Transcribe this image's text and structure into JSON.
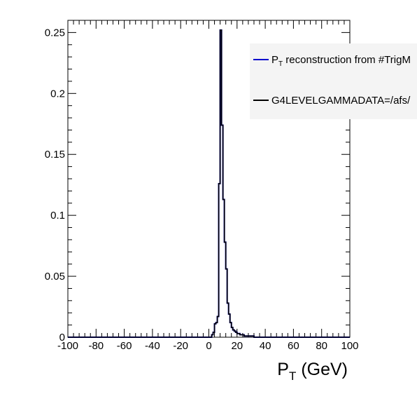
{
  "chart_data": {
    "type": "line",
    "title": "",
    "xlabel": "P_T (GeV)",
    "xlabel_main": "P",
    "xlabel_sub": "T",
    "xlabel_rest": " (GeV)",
    "ylabel": "",
    "xlim": [
      -100,
      100
    ],
    "ylim": [
      0,
      0.26
    ],
    "grid": false,
    "legend_position": "top-right",
    "x_ticks": [
      -100,
      -80,
      -60,
      -40,
      -20,
      0,
      20,
      40,
      60,
      80,
      100
    ],
    "y_ticks": [
      0,
      0.05,
      0.1,
      0.15,
      0.2,
      0.25
    ],
    "x_tick_labels": [
      "-100",
      "-80",
      "-60",
      "-40",
      "-20",
      "0",
      "20",
      "40",
      "60",
      "80",
      "100"
    ],
    "y_tick_labels": [
      "0",
      "0.05",
      "0.1",
      "0.15",
      "0.2",
      "0.25"
    ],
    "bin_width": 1,
    "series": [
      {
        "name": "P_T reconstruction from #TrigM",
        "legend_main": "P",
        "legend_sub": "T",
        "legend_rest": " reconstruction from #TrigM",
        "color": "#0000cc",
        "bins": [
          [
            2,
            0.002
          ],
          [
            3,
            0.004
          ],
          [
            4,
            0.011
          ],
          [
            5,
            0.012
          ],
          [
            6,
            0.017
          ],
          [
            7,
            0.126
          ],
          [
            8,
            0.252
          ],
          [
            9,
            0.174
          ],
          [
            10,
            0.113
          ],
          [
            11,
            0.078
          ],
          [
            12,
            0.056
          ],
          [
            13,
            0.028
          ],
          [
            14,
            0.019
          ],
          [
            15,
            0.012
          ],
          [
            16,
            0.008
          ],
          [
            17,
            0.006
          ],
          [
            18,
            0.005
          ],
          [
            19,
            0.004
          ],
          [
            20,
            0.003
          ],
          [
            21,
            0.003
          ],
          [
            22,
            0.002
          ],
          [
            23,
            0.002
          ],
          [
            24,
            0.002
          ],
          [
            25,
            0.001
          ],
          [
            26,
            0.001
          ],
          [
            27,
            0.001
          ],
          [
            28,
            0.001
          ],
          [
            29,
            0.001
          ],
          [
            30,
            0.001
          ],
          [
            31,
            0.001
          ]
        ]
      },
      {
        "name": "G4LEVELGAMMADATA=/afs/",
        "legend_main": "G4LEVELGAMMADATA=/afs/",
        "legend_sub": "",
        "legend_rest": "",
        "color": "#000000",
        "bins": [
          [
            2,
            0.002
          ],
          [
            3,
            0.004
          ],
          [
            4,
            0.011
          ],
          [
            5,
            0.012
          ],
          [
            6,
            0.017
          ],
          [
            7,
            0.126
          ],
          [
            8,
            0.252
          ],
          [
            9,
            0.174
          ],
          [
            10,
            0.113
          ],
          [
            11,
            0.078
          ],
          [
            12,
            0.056
          ],
          [
            13,
            0.028
          ],
          [
            14,
            0.019
          ],
          [
            15,
            0.012
          ],
          [
            16,
            0.008
          ],
          [
            17,
            0.006
          ],
          [
            18,
            0.005
          ],
          [
            19,
            0.004
          ],
          [
            20,
            0.003
          ],
          [
            21,
            0.003
          ],
          [
            22,
            0.002
          ],
          [
            23,
            0.002
          ],
          [
            24,
            0.002
          ],
          [
            25,
            0.001
          ],
          [
            26,
            0.001
          ],
          [
            27,
            0.001
          ],
          [
            28,
            0.001
          ],
          [
            29,
            0.001
          ],
          [
            30,
            0.001
          ],
          [
            31,
            0.001
          ]
        ]
      }
    ]
  }
}
